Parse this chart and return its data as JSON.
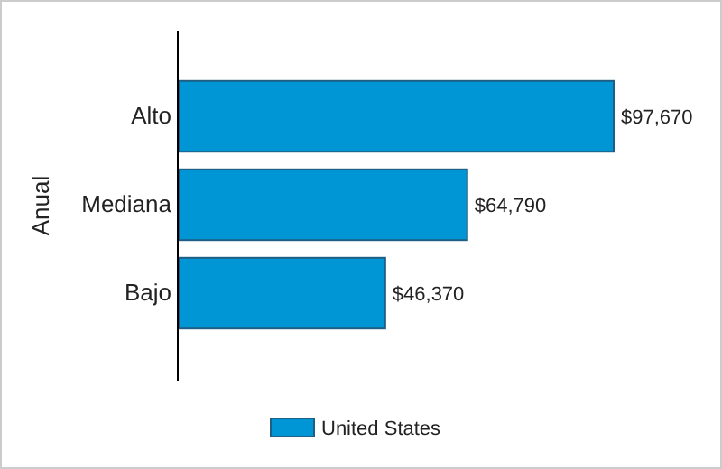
{
  "chart_data": {
    "type": "bar",
    "orientation": "horizontal",
    "ylabel": "Anual",
    "categories": [
      "Alto",
      "Mediana",
      "Bajo"
    ],
    "series": [
      {
        "name": "United States",
        "color": "#0096d6",
        "values": [
          97670,
          64790,
          46370
        ],
        "value_labels": [
          "$97,670",
          "$64,790",
          "$46,370"
        ]
      }
    ],
    "legend": "bottom"
  }
}
